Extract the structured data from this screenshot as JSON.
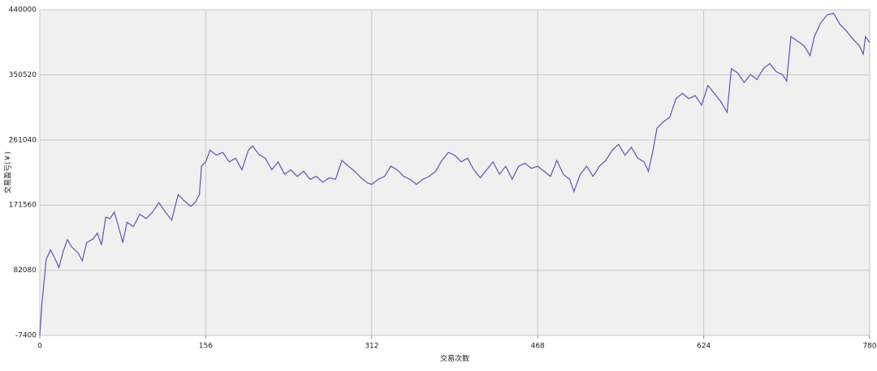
{
  "chart_data": {
    "type": "line",
    "x_label": "交易次数",
    "y_label": "交易盈亏(￥)",
    "xlim": [
      0,
      780
    ],
    "xticks": [
      0,
      156,
      312,
      468,
      624,
      780
    ],
    "ylim": [
      -7400,
      440000
    ],
    "yticks": [
      -7400,
      82080,
      171560,
      261040,
      350520,
      440000
    ],
    "grid": true,
    "series": [
      {
        "color": "#5a55b8",
        "x": [
          0,
          2,
          4,
          6,
          10,
          14,
          18,
          22,
          26,
          30,
          36,
          40,
          44,
          50,
          54,
          58,
          62,
          66,
          70,
          74,
          78,
          82,
          88,
          94,
          100,
          106,
          112,
          118,
          124,
          130,
          136,
          142,
          146,
          150,
          152,
          156,
          160,
          166,
          172,
          178,
          184,
          190,
          196,
          200,
          206,
          212,
          218,
          224,
          230,
          236,
          242,
          248,
          254,
          260,
          266,
          272,
          278,
          284,
          290,
          296,
          302,
          308,
          312,
          318,
          324,
          330,
          336,
          342,
          348,
          354,
          360,
          366,
          372,
          378,
          384,
          390,
          396,
          402,
          408,
          414,
          420,
          426,
          432,
          438,
          444,
          450,
          456,
          462,
          468,
          474,
          480,
          486,
          492,
          498,
          502,
          508,
          514,
          520,
          526,
          532,
          538,
          544,
          550,
          556,
          562,
          568,
          572,
          576,
          580,
          586,
          592,
          598,
          604,
          610,
          616,
          622,
          628,
          634,
          640,
          646,
          650,
          656,
          662,
          668,
          674,
          680,
          686,
          692,
          698,
          702,
          706,
          712,
          718,
          724,
          728,
          734,
          740,
          746,
          752,
          758,
          764,
          770,
          774,
          776,
          780
        ],
        "values": [
          -7400,
          36000,
          66000,
          97000,
          110000,
          99000,
          86000,
          108000,
          124000,
          114000,
          106000,
          95000,
          120000,
          125000,
          133000,
          117000,
          155000,
          153000,
          162000,
          142000,
          120000,
          148000,
          142000,
          159000,
          153000,
          162000,
          175000,
          162000,
          151000,
          186000,
          177000,
          170000,
          175000,
          186000,
          225000,
          231000,
          247000,
          240000,
          244000,
          231000,
          236000,
          220000,
          247000,
          253000,
          241000,
          236000,
          220000,
          231000,
          214000,
          220000,
          211000,
          218000,
          207000,
          211000,
          203000,
          209000,
          207000,
          233000,
          225000,
          218000,
          209000,
          202000,
          200000,
          207000,
          211000,
          225000,
          220000,
          211000,
          207000,
          200000,
          207000,
          211000,
          218000,
          233000,
          244000,
          240000,
          231000,
          236000,
          220000,
          209000,
          220000,
          231000,
          214000,
          225000,
          207000,
          225000,
          229000,
          222000,
          225000,
          218000,
          211000,
          233000,
          214000,
          207000,
          190000,
          214000,
          225000,
          211000,
          225000,
          233000,
          247000,
          255000,
          240000,
          251000,
          236000,
          231000,
          218000,
          244000,
          277000,
          286000,
          292000,
          318000,
          325000,
          318000,
          322000,
          309000,
          336000,
          325000,
          314000,
          299000,
          359000,
          353000,
          340000,
          351000,
          344000,
          359000,
          366000,
          355000,
          351000,
          342000,
          403000,
          397000,
          391000,
          377000,
          403000,
          422000,
          433000,
          435000,
          420000,
          411000,
          400000,
          391000,
          379000,
          403000,
          395000
        ]
      }
    ]
  }
}
